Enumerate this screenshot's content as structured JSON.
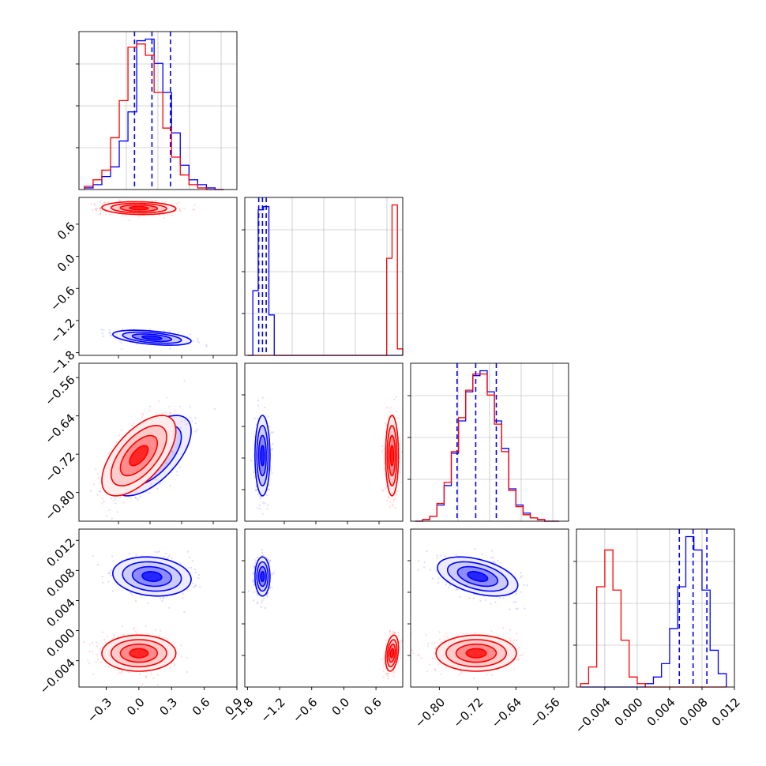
{
  "figure": {
    "kind": "corner plot",
    "colors": {
      "series_a": "#0000ff",
      "series_b": "#ff0000",
      "grid": "#b0b0b0",
      "frame": "#000000"
    }
  },
  "chart_data": [
    {
      "type": "histogram",
      "panel": "row1-col1",
      "xlim": [
        -0.55,
        0.9
      ],
      "grid": true,
      "xtick_labels_shown": false,
      "bin_edges": [
        -0.5,
        -0.42,
        -0.34,
        -0.26,
        -0.18,
        -0.1,
        -0.02,
        0.06,
        0.14,
        0.22,
        0.3,
        0.38,
        0.46,
        0.54,
        0.62,
        0.7,
        0.78
      ],
      "series": [
        {
          "color": "#0000ff",
          "counts": [
            1,
            3,
            8,
            14,
            30,
            48,
            92,
            93,
            78,
            60,
            35,
            15,
            6,
            3,
            1,
            0
          ],
          "quantiles": [
            -0.04,
            0.12,
            0.29
          ]
        },
        {
          "color": "#ff0000",
          "counts": [
            2,
            6,
            12,
            32,
            55,
            88,
            90,
            83,
            60,
            38,
            20,
            9,
            3,
            1,
            0,
            0
          ]
        }
      ]
    },
    {
      "type": "histogram",
      "panel": "row2-col2",
      "xlim": [
        -1.85,
        1.1
      ],
      "grid": true,
      "xtick_labels_shown": false,
      "bin_edges": [
        -1.8,
        -1.7,
        -1.6,
        -1.5,
        -1.4,
        -1.3,
        -1.2,
        -1.1,
        -1.0,
        -0.9,
        -0.8,
        -0.7,
        -0.6,
        -0.5,
        -0.4,
        -0.3,
        -0.2,
        -0.1,
        0.0,
        0.1,
        0.2,
        0.3,
        0.4,
        0.5,
        0.6,
        0.7,
        0.8,
        0.9,
        1.0,
        1.1
      ],
      "series": [
        {
          "color": "#0000ff",
          "counts": [
            0,
            40,
            90,
            92,
            25,
            0,
            0,
            0,
            0,
            0,
            0,
            0,
            0,
            0,
            0,
            0,
            0,
            0,
            0,
            0,
            0,
            0,
            0,
            0,
            0,
            0,
            0,
            0,
            0
          ],
          "quantiles": [
            -1.59,
            -1.52,
            -1.45
          ]
        },
        {
          "color": "#ff0000",
          "counts": [
            0,
            0,
            0,
            0,
            0,
            0,
            0,
            0,
            0,
            0,
            0,
            0,
            0,
            0,
            0,
            0,
            0,
            0,
            0,
            0,
            0,
            0,
            0,
            0,
            0,
            0,
            60,
            93,
            4
          ]
        }
      ]
    },
    {
      "type": "histogram",
      "panel": "row3-col3",
      "xlim": [
        -0.86,
        -0.53
      ],
      "grid": true,
      "xtick_labels_shown": false,
      "bin_edges": [
        -0.85,
        -0.835,
        -0.82,
        -0.805,
        -0.79,
        -0.775,
        -0.76,
        -0.745,
        -0.73,
        -0.715,
        -0.7,
        -0.685,
        -0.67,
        -0.655,
        -0.64,
        -0.625,
        -0.61,
        -0.595,
        -0.58,
        -0.565,
        -0.55
      ],
      "series": [
        {
          "color": "#0000ff",
          "counts": [
            0,
            1,
            3,
            10,
            22,
            42,
            62,
            80,
            90,
            93,
            80,
            62,
            45,
            20,
            10,
            5,
            2,
            1,
            0,
            0
          ],
          "quantiles": [
            -0.763,
            -0.724,
            -0.681
          ]
        },
        {
          "color": "#ff0000",
          "counts": [
            0,
            1,
            3,
            11,
            24,
            43,
            64,
            81,
            91,
            91,
            78,
            60,
            43,
            19,
            9,
            4,
            2,
            1,
            0,
            0
          ]
        }
      ]
    },
    {
      "type": "histogram",
      "panel": "row4-col4",
      "xlim": [
        -0.0075,
        0.012
      ],
      "grid": true,
      "xticks": [
        -0.004,
        0.0,
        0.004,
        0.008,
        0.012
      ],
      "xtick_labels": [
        "−0.004",
        "0.000",
        "0.004",
        "0.008",
        "0.012"
      ],
      "bin_edges": [
        -0.007,
        -0.006,
        -0.005,
        -0.004,
        -0.003,
        -0.002,
        -0.001,
        0.0,
        0.001,
        0.002,
        0.003,
        0.004,
        0.005,
        0.006,
        0.007,
        0.008,
        0.009,
        0.01,
        0.011
      ],
      "series": [
        {
          "color": "#0000ff",
          "counts": [
            0,
            0,
            0,
            0,
            0,
            0,
            0,
            0,
            2,
            6,
            14,
            35,
            60,
            90,
            82,
            58,
            22,
            8
          ],
          "quantiles": [
            0.0052,
            0.0069,
            0.0086
          ]
        },
        {
          "color": "#ff0000",
          "counts": [
            2,
            12,
            60,
            82,
            58,
            28,
            6,
            2,
            0,
            0,
            0,
            0,
            0,
            0,
            0,
            0,
            0,
            0
          ]
        }
      ]
    },
    {
      "type": "scatter",
      "panel": "row2-col1",
      "xlim": [
        -0.55,
        0.9
      ],
      "ylim": [
        -1.85,
        1.1
      ],
      "grid": false,
      "yticks": [
        -1.8,
        -1.2,
        -0.6,
        0.0,
        0.6
      ],
      "ytick_labels": [
        "−1.8",
        "−1.2",
        "−0.6",
        "0.0",
        "0.6"
      ],
      "series": [
        {
          "color": "#0000ff",
          "center": [
            0.12,
            -1.52
          ],
          "sd": [
            0.18,
            0.07
          ],
          "corr": -0.45
        },
        {
          "color": "#ff0000",
          "center": [
            0.0,
            0.9
          ],
          "sd": [
            0.17,
            0.06
          ],
          "corr": -0.1
        }
      ]
    },
    {
      "type": "scatter",
      "panel": "row3-col1",
      "xlim": [
        -0.55,
        0.9
      ],
      "ylim": [
        -0.86,
        -0.53
      ],
      "grid": false,
      "yticks": [
        -0.8,
        -0.72,
        -0.64,
        -0.56
      ],
      "ytick_labels": [
        "−0.80",
        "−0.72",
        "−0.64",
        "−0.56"
      ],
      "series": [
        {
          "color": "#0000ff",
          "center": [
            0.12,
            -0.723
          ],
          "sd": [
            0.18,
            0.042
          ],
          "corr": 0.62
        },
        {
          "color": "#ff0000",
          "center": [
            0.0,
            -0.723
          ],
          "sd": [
            0.17,
            0.042
          ],
          "corr": 0.62
        }
      ]
    },
    {
      "type": "scatter",
      "panel": "row3-col2",
      "xlim": [
        -1.85,
        1.1
      ],
      "ylim": [
        -0.86,
        -0.53
      ],
      "grid": false,
      "series": [
        {
          "color": "#0000ff",
          "center": [
            -1.52,
            -0.723
          ],
          "sd": [
            0.07,
            0.042
          ],
          "corr": 0.0
        },
        {
          "color": "#ff0000",
          "center": [
            0.9,
            -0.723
          ],
          "sd": [
            0.06,
            0.042
          ],
          "corr": 0.0
        }
      ]
    },
    {
      "type": "scatter",
      "panel": "row4-col1",
      "xlim": [
        -0.55,
        0.9
      ],
      "ylim": [
        -0.0075,
        0.0135
      ],
      "grid": false,
      "xticks": [
        -0.3,
        0.0,
        0.3,
        0.6,
        0.9
      ],
      "xtick_labels": [
        "−0.3",
        "0.0",
        "0.3",
        "0.6",
        "0.9"
      ],
      "yticks": [
        -0.004,
        0.0,
        0.004,
        0.008,
        0.012
      ],
      "ytick_labels": [
        "−0.004",
        "0.000",
        "0.004",
        "0.008",
        "0.012"
      ],
      "series": [
        {
          "color": "#0000ff",
          "center": [
            0.12,
            0.0072
          ],
          "sd": [
            0.18,
            0.0013
          ],
          "corr": -0.15
        },
        {
          "color": "#ff0000",
          "center": [
            0.0,
            -0.003
          ],
          "sd": [
            0.17,
            0.0012
          ],
          "corr": 0.0
        }
      ]
    },
    {
      "type": "scatter",
      "panel": "row4-col2",
      "xlim": [
        -1.85,
        1.1
      ],
      "ylim": [
        -0.0075,
        0.0135
      ],
      "grid": false,
      "xticks": [
        -1.8,
        -1.2,
        -0.6,
        0.0,
        0.6
      ],
      "xtick_labels": [
        "−1.8",
        "−1.2",
        "−0.6",
        "0.0",
        "0.6"
      ],
      "series": [
        {
          "color": "#0000ff",
          "center": [
            -1.52,
            0.0072
          ],
          "sd": [
            0.07,
            0.0013
          ],
          "corr": 0.0
        },
        {
          "color": "#ff0000",
          "center": [
            0.9,
            -0.003
          ],
          "sd": [
            0.06,
            0.0012
          ],
          "corr": 0.3
        }
      ]
    },
    {
      "type": "scatter",
      "panel": "row4-col3",
      "xlim": [
        -0.86,
        -0.53
      ],
      "ylim": [
        -0.0075,
        0.0135
      ],
      "grid": false,
      "xticks": [
        -0.8,
        -0.72,
        -0.64,
        -0.56
      ],
      "xtick_labels": [
        "−0.80",
        "−0.72",
        "−0.64",
        "−0.56"
      ],
      "series": [
        {
          "color": "#0000ff",
          "center": [
            -0.72,
            0.0072
          ],
          "sd": [
            0.042,
            0.0013
          ],
          "corr": -0.45
        },
        {
          "color": "#ff0000",
          "center": [
            -0.723,
            -0.003
          ],
          "sd": [
            0.042,
            0.0012
          ],
          "corr": 0.0
        }
      ]
    }
  ]
}
